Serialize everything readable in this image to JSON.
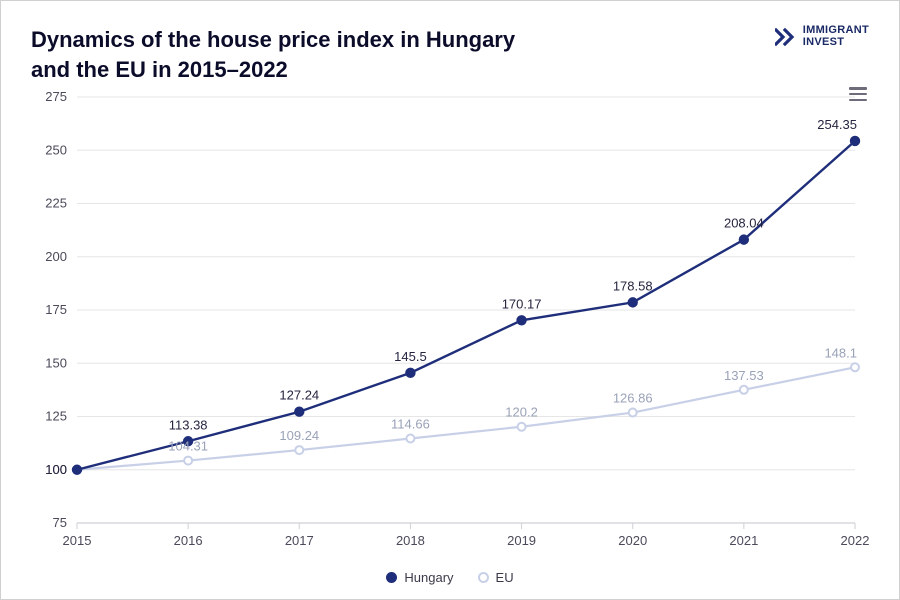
{
  "title_line1": "Dynamics of the house price index in Hungary",
  "title_line2": "and the EU in 2015–2022",
  "logo": {
    "line1": "IMMIGRANT",
    "line2": "INVEST"
  },
  "chart": {
    "type": "line",
    "categories": [
      "2015",
      "2016",
      "2017",
      "2018",
      "2019",
      "2020",
      "2021",
      "2022"
    ],
    "series": [
      {
        "name": "Hungary",
        "color": "#1f2e7a",
        "marker_fill": "#1f2e7a",
        "marker_stroke": "#1f2e7a",
        "line_width": 2.4,
        "marker_radius": 4.2,
        "values": [
          100,
          113.38,
          127.24,
          145.5,
          170.17,
          178.58,
          208.04,
          254.35
        ],
        "labels": [
          "100",
          "113.38",
          "127.24",
          "145.5",
          "170.17",
          "178.58",
          "208.04",
          "254.35"
        ],
        "label_color": "#252540"
      },
      {
        "name": "EU",
        "color": "#c8d0e8",
        "marker_fill": "#ffffff",
        "marker_stroke": "#c8d0e8",
        "line_width": 2.2,
        "marker_radius": 4,
        "values": [
          100,
          104.31,
          109.24,
          114.66,
          120.2,
          126.86,
          137.53,
          148.1
        ],
        "labels": [
          "",
          "104.31",
          "109.24",
          "114.66",
          "120.2",
          "126.86",
          "137.53",
          "148.1"
        ],
        "label_color": "#9aa2b8"
      }
    ],
    "ylim": [
      75,
      275
    ],
    "ytick_step": 25,
    "yticks": [
      75,
      100,
      125,
      150,
      175,
      200,
      225,
      250,
      275
    ],
    "background_color": "#ffffff",
    "grid_color": "#e6e6e6",
    "axis_line_color": "#cfcfd6",
    "tick_label_color": "#4a4a5a",
    "tick_fontsize": 13,
    "data_label_fontsize": 13,
    "title_fontsize": 22,
    "title_color": "#0b0b2a"
  },
  "legend": {
    "items": [
      {
        "label": "Hungary",
        "swatch_fill": "#1f2e7a",
        "swatch_stroke": "#1f2e7a"
      },
      {
        "label": "EU",
        "swatch_fill": "#ffffff",
        "swatch_stroke": "#c8d0e8"
      }
    ]
  }
}
